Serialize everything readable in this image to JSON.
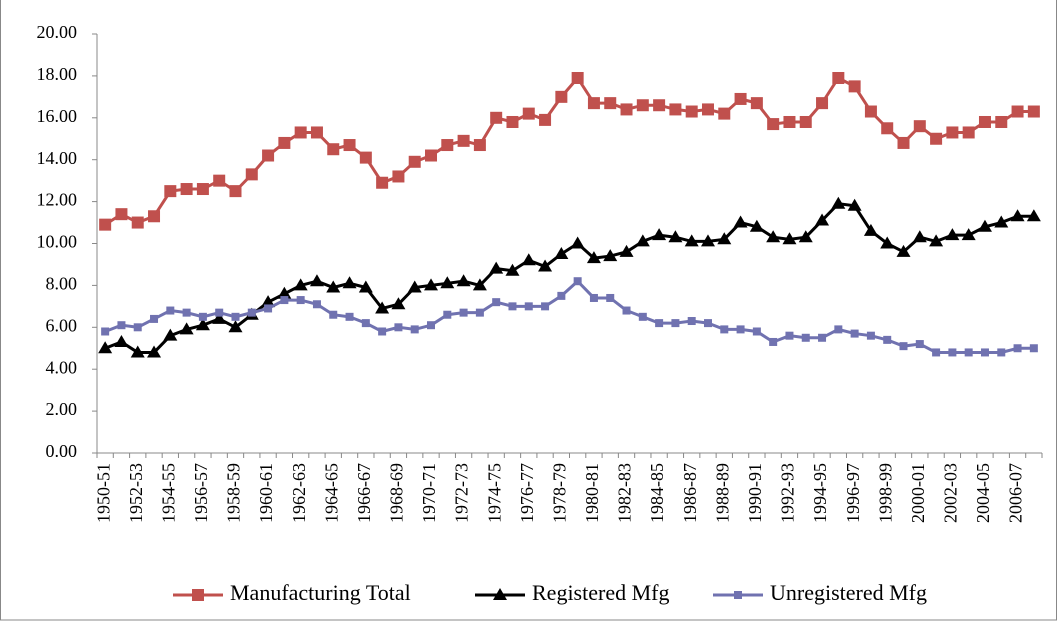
{
  "chart_data": {
    "type": "line",
    "categories": [
      "1950-51",
      null,
      "1952-53",
      null,
      "1954-55",
      null,
      "1956-57",
      null,
      "1958-59",
      null,
      "1960-61",
      null,
      "1962-63",
      null,
      "1964-65",
      null,
      "1966-67",
      null,
      "1968-69",
      null,
      "1970-71",
      null,
      "1972-73",
      null,
      "1974-75",
      null,
      "1976-77",
      null,
      "1978-79",
      null,
      "1980-81",
      null,
      "1982-83",
      null,
      "1984-85",
      null,
      "1986-87",
      null,
      "1988-89",
      null,
      "1990-91",
      null,
      "1992-93",
      null,
      "1994-95",
      null,
      "1996-97",
      null,
      "1998-99",
      null,
      "2000-01",
      null,
      "2002-03",
      null,
      "2004-05",
      null,
      "2006-07",
      null
    ],
    "series": [
      {
        "name": "Manufacturing Total",
        "color": "#c0504d",
        "marker": "square",
        "values": [
          10.9,
          11.4,
          11.0,
          11.3,
          12.5,
          12.6,
          12.6,
          13.0,
          12.5,
          13.3,
          14.2,
          14.8,
          15.3,
          15.3,
          14.5,
          14.7,
          14.1,
          12.9,
          13.2,
          13.9,
          14.2,
          14.7,
          14.9,
          14.7,
          16.0,
          15.8,
          16.2,
          15.9,
          17.0,
          17.9,
          16.7,
          16.7,
          16.4,
          16.6,
          16.6,
          16.4,
          16.3,
          16.4,
          16.2,
          16.9,
          16.7,
          15.7,
          15.8,
          15.8,
          16.7,
          17.9,
          17.5,
          16.3,
          15.5,
          14.8,
          15.6,
          15.0,
          15.3,
          15.3,
          15.8,
          15.8,
          16.3,
          16.3
        ]
      },
      {
        "name": "Registered Mfg",
        "color": "#000000",
        "marker": "triangle",
        "values": [
          5.0,
          5.3,
          4.8,
          4.8,
          5.6,
          5.9,
          6.1,
          6.4,
          6.0,
          6.6,
          7.2,
          7.6,
          8.0,
          8.2,
          7.9,
          8.1,
          7.9,
          6.9,
          7.1,
          7.9,
          8.0,
          8.1,
          8.2,
          8.0,
          8.8,
          8.7,
          9.2,
          8.9,
          9.5,
          10.0,
          9.3,
          9.4,
          9.6,
          10.1,
          10.4,
          10.3,
          10.1,
          10.1,
          10.2,
          11.0,
          10.8,
          10.3,
          10.2,
          10.3,
          11.1,
          11.9,
          11.8,
          10.6,
          10.0,
          9.6,
          10.3,
          10.1,
          10.4,
          10.4,
          10.8,
          11.0,
          11.3,
          11.3
        ]
      },
      {
        "name": "Unregistered Mfg",
        "color": "#7072b0",
        "marker": "small-square",
        "values": [
          5.8,
          6.1,
          6.0,
          6.4,
          6.8,
          6.7,
          6.5,
          6.7,
          6.5,
          6.7,
          6.9,
          7.3,
          7.3,
          7.1,
          6.6,
          6.5,
          6.2,
          5.8,
          6.0,
          5.9,
          6.1,
          6.6,
          6.7,
          6.7,
          7.2,
          7.0,
          7.0,
          7.0,
          7.5,
          8.2,
          7.4,
          7.4,
          6.8,
          6.5,
          6.2,
          6.2,
          6.3,
          6.2,
          5.9,
          5.9,
          5.8,
          5.3,
          5.6,
          5.5,
          5.5,
          5.9,
          5.7,
          5.6,
          5.4,
          5.1,
          5.2,
          4.8,
          4.8,
          4.8,
          4.8,
          4.8,
          5.0,
          5.0
        ]
      }
    ],
    "ylim": [
      0,
      20
    ],
    "yticks": [
      {
        "value": 0,
        "label": "0.00"
      },
      {
        "value": 2,
        "label": "2.00"
      },
      {
        "value": 4,
        "label": "4.00"
      },
      {
        "value": 6,
        "label": "6.00"
      },
      {
        "value": 8,
        "label": "8.00"
      },
      {
        "value": 10,
        "label": "10.00"
      },
      {
        "value": 12,
        "label": "12.00"
      },
      {
        "value": 14,
        "label": "14.00"
      },
      {
        "value": 16,
        "label": "16.00"
      },
      {
        "value": 18,
        "label": "18.00"
      },
      {
        "value": 20,
        "label": "20.00"
      }
    ],
    "legend": "bottom",
    "grid": false
  }
}
